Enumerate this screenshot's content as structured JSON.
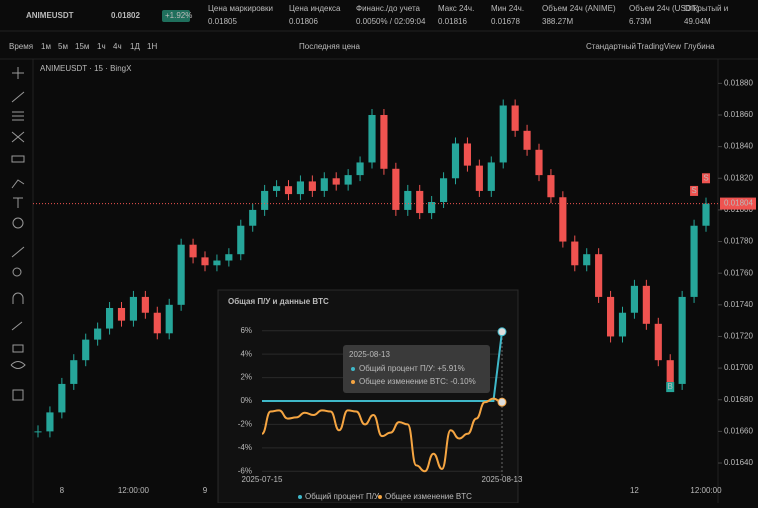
{
  "header": {
    "symbol": "ANIMEUSDT",
    "price": "0.01802",
    "change": "+1.92%",
    "stats": [
      {
        "label": "Цена маркировки",
        "value": "0.01805"
      },
      {
        "label": "Цена индекса",
        "value": "0.01806"
      },
      {
        "label": "Финанс./до учета",
        "value": "0.0050% / 02:09:04"
      },
      {
        "label": "Макс 24ч.",
        "value": "0.01816"
      },
      {
        "label": "Мин 24ч.",
        "value": "0.01678"
      },
      {
        "label": "Объем 24ч (ANIME)",
        "value": "388.27M"
      },
      {
        "label": "Объем 24ч (USDT)",
        "value": "6.73M"
      },
      {
        "label": "Открытый и",
        "value": "49.04M"
      }
    ]
  },
  "toolbar": {
    "intervals": [
      "Время",
      "1м",
      "5м",
      "15м",
      "1ч",
      "4ч",
      "1Д",
      "1Н"
    ],
    "price_mode": "Последняя цена",
    "views": [
      "Стандартный",
      "TradingView",
      "Глубина"
    ]
  },
  "chart_data": [
    {
      "type": "candlestick",
      "title": "ANIMEUSDT · 15 · BingX",
      "up_color": "#26a69a",
      "down_color": "#ef5350",
      "closes": [
        0.0166,
        0.01672,
        0.0169,
        0.01705,
        0.01718,
        0.01725,
        0.01738,
        0.0173,
        0.01745,
        0.01735,
        0.01722,
        0.0174,
        0.01778,
        0.0177,
        0.01765,
        0.01768,
        0.01772,
        0.0179,
        0.018,
        0.01812,
        0.01815,
        0.0181,
        0.01818,
        0.01812,
        0.0182,
        0.01816,
        0.01822,
        0.0183,
        0.0186,
        0.01826,
        0.018,
        0.01812,
        0.01798,
        0.01805,
        0.0182,
        0.01842,
        0.01828,
        0.01812,
        0.0183,
        0.01866,
        0.0185,
        0.01838,
        0.01822,
        0.01808,
        0.0178,
        0.01765,
        0.01772,
        0.01745,
        0.0172,
        0.01735,
        0.01752,
        0.01728,
        0.01705,
        0.0169,
        0.01745,
        0.0179,
        0.01804
      ],
      "ylim": [
        0.01628,
        0.018935
      ],
      "yticks": [
        {
          "value": 0.0188,
          "label": "0.01880"
        },
        {
          "value": 0.0186,
          "label": "0.01860"
        },
        {
          "value": 0.0184,
          "label": "0.01840"
        },
        {
          "value": 0.0182,
          "label": "0.01820"
        },
        {
          "value": 0.018,
          "label": "0.01800"
        },
        {
          "value": 0.0178,
          "label": "0.01780"
        },
        {
          "value": 0.0176,
          "label": "0.01760"
        },
        {
          "value": 0.0174,
          "label": "0.01740"
        },
        {
          "value": 0.0172,
          "label": "0.01720"
        },
        {
          "value": 0.017,
          "label": "0.01700"
        },
        {
          "value": 0.0168,
          "label": "0.01680"
        },
        {
          "value": 0.0166,
          "label": "0.01660"
        },
        {
          "value": 0.0164,
          "label": "0.01640"
        }
      ],
      "last_price": {
        "value": 0.01804,
        "label": "0.01804"
      },
      "xticks": [
        {
          "index": 2,
          "label": "8"
        },
        {
          "index": 8,
          "label": "12:00:00"
        },
        {
          "index": 14,
          "label": "9"
        },
        {
          "index": 50,
          "label": "12"
        },
        {
          "index": 56,
          "label": "12:00:00"
        }
      ],
      "markers": [
        {
          "index": 56,
          "label": "S",
          "value": 0.0182
        },
        {
          "index": 55,
          "label": "S",
          "value": 0.01812
        },
        {
          "index": 53,
          "label": "B",
          "value": 0.01688
        }
      ]
    },
    {
      "type": "line",
      "title": "Общая П/У и данные BTC",
      "series": [
        {
          "name": "Общий процент П/У",
          "color": "#3fb8c9",
          "values": [
            0,
            0,
            0,
            0,
            0,
            0,
            0,
            0,
            0,
            0,
            0,
            0,
            0,
            0,
            0,
            0,
            0,
            0,
            0,
            0,
            0,
            0,
            0,
            0,
            0,
            0,
            0,
            0,
            5.91
          ]
        },
        {
          "name": "Общее изменение BTC",
          "color": "#f5a542",
          "values": [
            -2.8,
            -0.9,
            -0.8,
            -1.5,
            -1.4,
            -1.0,
            -1.2,
            -0.8,
            -0.9,
            -2.5,
            -0.8,
            -0.9,
            -2.0,
            -1.2,
            -3.0,
            -2.7,
            -1.8,
            -2.0,
            -5.5,
            -6.0,
            -4.5,
            -5.8,
            -2.5,
            -3.2,
            -2.8,
            -1.5,
            -0.1,
            0.2,
            -0.1
          ]
        }
      ],
      "x_labels": [
        {
          "index": 0,
          "label": "2025-07-15"
        },
        {
          "index": 28,
          "label": "2025-08-13"
        }
      ],
      "ylim": [
        -7,
        7
      ],
      "yticks": [
        {
          "value": 6,
          "label": "6%"
        },
        {
          "value": 4,
          "label": "4%"
        },
        {
          "value": 2,
          "label": "2%"
        },
        {
          "value": 0,
          "label": "0%"
        },
        {
          "value": -2,
          "label": "-2%"
        },
        {
          "value": -4,
          "label": "-4%"
        },
        {
          "value": -6,
          "label": "-6%"
        }
      ],
      "tooltip": {
        "date": "2025-08-13",
        "lines": [
          "Общий процент П/У: +5.91%",
          "Общее изменение BTC: -0.10%"
        ]
      }
    }
  ]
}
